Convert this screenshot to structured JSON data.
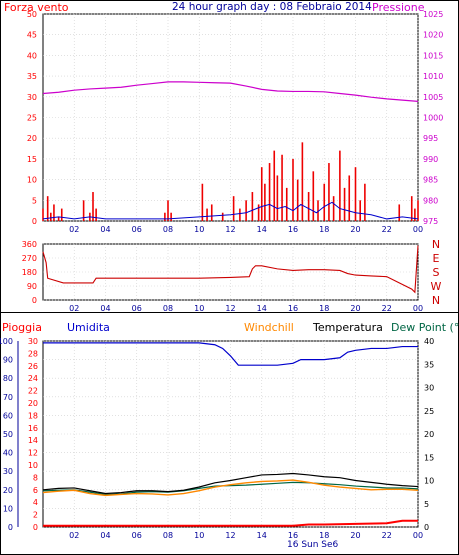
{
  "header": {
    "wind_label": "Forza vento",
    "title": "24 hour graph day : 08 Febbraio 2014",
    "pressure_label": "Pressione"
  },
  "legend": {
    "rain_label": "Pioggia",
    "humidity_label": "Umidita",
    "windchill_label": "Windchill",
    "temperature_label": "Temperatura",
    "dewpoint_label": "Dew Point (°C"
  },
  "annotation": "16 Sun Se6",
  "colors": {
    "frame": "#000000",
    "grid": "#cfcfcf",
    "wind": "#ee0000",
    "gust": "#ff0000",
    "wind_blue": "#0000cc",
    "wind_green": "#008800",
    "pressure": "#cc00cc",
    "direction": "#cc0000",
    "humidity": "#0000cc",
    "windchill": "#ff8800",
    "temperature": "#000000",
    "dewpoint": "#006644",
    "rain": "#ff0000",
    "rain_rate": "#cc0000",
    "solar": "#ffff00",
    "left_axis_blue": "#000099",
    "left_axis_red": "#ff0000"
  },
  "chart_data": [
    {
      "type": "line",
      "panel": "wind-pressure",
      "x_ticks": [
        "02",
        "04",
        "06",
        "08",
        "10",
        "12",
        "14",
        "16",
        "18",
        "20",
        "22",
        "00"
      ],
      "y_left_ticks": [
        0,
        5,
        10,
        15,
        20,
        25,
        30,
        35,
        40,
        45,
        50
      ],
      "y_left_range": [
        0,
        50
      ],
      "y_right_ticks": [
        975,
        980,
        985,
        990,
        995,
        1000,
        1005,
        1010,
        1015,
        1020,
        1025
      ],
      "y_right_range": [
        975,
        1025
      ],
      "series": [
        {
          "name": "Pressione",
          "x": [
            0,
            1,
            2,
            3,
            4,
            5,
            6,
            7,
            8,
            9,
            10,
            11,
            12,
            13,
            14,
            15,
            16,
            17,
            18,
            19,
            20,
            21,
            22,
            23,
            24
          ],
          "values": [
            1005.8,
            1006.1,
            1006.6,
            1006.9,
            1007.1,
            1007.3,
            1007.8,
            1008.2,
            1008.6,
            1008.6,
            1008.5,
            1008.4,
            1008.3,
            1007.6,
            1006.8,
            1006.4,
            1006.3,
            1006.3,
            1006.2,
            1005.8,
            1005.4,
            1004.9,
            1004.5,
            1004.2,
            1003.9
          ]
        },
        {
          "name": "Forza vento",
          "x": [
            0,
            0.3,
            0.5,
            0.7,
            1.0,
            1.2,
            2.6,
            3.0,
            3.2,
            3.4,
            7.8,
            8.0,
            8.2,
            10.2,
            10.5,
            10.8,
            11.5,
            12.2,
            12.6,
            13.0,
            13.4,
            13.8,
            14.0,
            14.2,
            14.5,
            14.8,
            15.0,
            15.3,
            15.6,
            16.0,
            16.3,
            16.6,
            17.0,
            17.3,
            17.6,
            18.0,
            18.3,
            18.6,
            19.0,
            19.3,
            19.6,
            20.0,
            20.3,
            20.6,
            22.8,
            23.6,
            23.8,
            24.0
          ],
          "values": [
            3,
            6,
            2,
            4,
            1,
            3,
            5,
            2,
            7,
            3,
            2,
            5,
            2,
            9,
            3,
            4,
            2,
            6,
            3,
            5,
            7,
            4,
            13,
            9,
            14,
            17,
            11,
            16,
            8,
            15,
            10,
            19,
            7,
            12,
            5,
            9,
            14,
            6,
            17,
            8,
            11,
            13,
            5,
            9,
            4,
            6,
            3,
            5
          ]
        },
        {
          "name": "wind-blue",
          "x": [
            0,
            1,
            2,
            3,
            4,
            6,
            8,
            10,
            12,
            13,
            14,
            14.5,
            15,
            15.5,
            16,
            16.5,
            17,
            17.5,
            18,
            18.5,
            19,
            19.5,
            20,
            21,
            22,
            23,
            24
          ],
          "values": [
            0.5,
            1,
            0.5,
            1,
            0.5,
            0.5,
            0.5,
            1,
            1.5,
            2,
            3.5,
            4,
            3,
            3.5,
            2.5,
            4,
            3,
            2,
            3.5,
            4.5,
            3,
            2.5,
            2,
            1.5,
            0.5,
            1,
            0.5
          ]
        }
      ]
    },
    {
      "type": "line",
      "panel": "wind-direction",
      "x_ticks": [
        "02",
        "04",
        "06",
        "08",
        "10",
        "12",
        "14",
        "16",
        "18",
        "20",
        "22",
        "00"
      ],
      "y_left_ticks": [
        0,
        90,
        180,
        270,
        360
      ],
      "y_left_range": [
        0,
        360
      ],
      "compass_labels": [
        "N",
        "W",
        "S",
        "E",
        "N"
      ],
      "series": [
        {
          "name": "direction",
          "x": [
            0,
            0.2,
            0.3,
            1.3,
            3.2,
            3.4,
            4.0,
            6,
            8,
            10,
            12,
            13.2,
            13.4,
            13.6,
            14.0,
            15,
            16,
            17,
            18,
            19,
            19.5,
            20,
            21,
            22,
            23.6,
            23.8,
            24.0
          ],
          "values": [
            310,
            240,
            140,
            110,
            110,
            140,
            140,
            140,
            140,
            140,
            145,
            150,
            200,
            220,
            220,
            200,
            190,
            195,
            195,
            190,
            170,
            160,
            155,
            150,
            70,
            50,
            350
          ]
        }
      ]
    },
    {
      "type": "line",
      "panel": "temp-humidity-rain",
      "x_ticks": [
        "02",
        "04",
        "06",
        "08",
        "10",
        "12",
        "14",
        "16",
        "18",
        "20",
        "22",
        "00"
      ],
      "y_left_outer_ticks": [
        0,
        10,
        20,
        30,
        40,
        50,
        60,
        70,
        80,
        90,
        100
      ],
      "y_left_inner_ticks": [
        0,
        2,
        4,
        6,
        8,
        10,
        12,
        14,
        16,
        18,
        20,
        22,
        24,
        26,
        28,
        30
      ],
      "y_right_ticks": [
        0,
        5,
        10,
        15,
        20,
        25,
        30,
        35,
        40
      ],
      "y_right_range": [
        0,
        40
      ],
      "series": [
        {
          "name": "Umidita",
          "x": [
            0,
            2,
            4,
            6,
            8,
            10,
            11,
            11.5,
            12.0,
            12.5,
            13.0,
            14.0,
            15.0,
            16.0,
            16.5,
            17.0,
            18.0,
            19.0,
            19.5,
            20.0,
            21.0,
            22.0,
            23.0,
            24.0
          ],
          "values": [
            99,
            99,
            99,
            99,
            99,
            99,
            98,
            96,
            92,
            87,
            87,
            87,
            87,
            88,
            90,
            90,
            90,
            91,
            94,
            95,
            96,
            96,
            97,
            97
          ]
        },
        {
          "name": "Temperatura",
          "x": [
            0,
            1,
            2,
            3,
            4,
            5,
            6,
            7,
            8,
            9,
            10,
            11,
            12,
            13,
            14,
            15,
            16,
            17,
            18,
            19,
            20,
            21,
            22,
            23,
            24
          ],
          "values": [
            8.0,
            8.3,
            8.4,
            7.8,
            7.2,
            7.4,
            7.8,
            7.8,
            7.6,
            7.9,
            8.6,
            9.5,
            10.0,
            10.6,
            11.2,
            11.3,
            11.5,
            11.2,
            10.8,
            10.6,
            10.0,
            9.6,
            9.2,
            8.9,
            8.7
          ]
        },
        {
          "name": "Windchill",
          "x": [
            0,
            1,
            2,
            3,
            4,
            5,
            6,
            7,
            8,
            9,
            10,
            11,
            12,
            13,
            14,
            15,
            16,
            17,
            18,
            19,
            20,
            21,
            22,
            23,
            24
          ],
          "values": [
            7.4,
            7.7,
            7.9,
            7.2,
            6.8,
            7.0,
            7.2,
            7.1,
            6.9,
            7.2,
            7.8,
            8.6,
            9.1,
            9.5,
            9.8,
            9.9,
            10.1,
            9.6,
            9.0,
            8.6,
            8.3,
            8.0,
            8.1,
            8.1,
            7.9
          ]
        },
        {
          "name": "Dew Point",
          "x": [
            0,
            1,
            2,
            3,
            4,
            5,
            6,
            7,
            8,
            9,
            10,
            11,
            12,
            13,
            14,
            15,
            16,
            17,
            18,
            19,
            20,
            21,
            22,
            23,
            24
          ],
          "values": [
            7.8,
            7.9,
            8.0,
            7.5,
            7.0,
            7.1,
            7.5,
            7.6,
            7.5,
            7.8,
            8.3,
            8.8,
            8.9,
            9.0,
            9.2,
            9.4,
            9.6,
            9.5,
            9.3,
            9.1,
            8.8,
            8.6,
            8.4,
            8.4,
            8.2
          ]
        },
        {
          "name": "Pioggia",
          "x": [
            0,
            2,
            4,
            6,
            8,
            10,
            12,
            14,
            16,
            17,
            18,
            20,
            22,
            22.5,
            23,
            24
          ],
          "values": [
            0.2,
            0.2,
            0.2,
            0.2,
            0.2,
            0.2,
            0.2,
            0.2,
            0.2,
            0.4,
            0.4,
            0.5,
            0.6,
            0.8,
            1.0,
            1.0
          ]
        }
      ]
    }
  ]
}
